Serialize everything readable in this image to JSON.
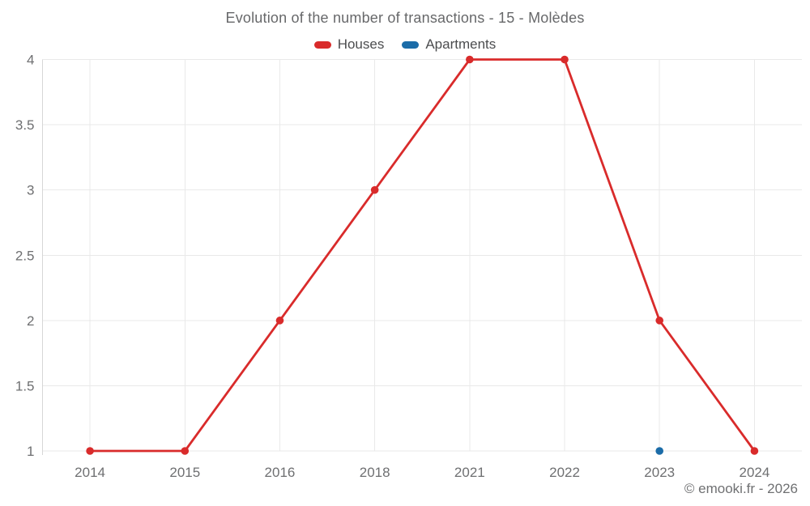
{
  "title": "Evolution of the number of transactions - 15 - Molèdes",
  "copyright": "© emooki.fr - 2026",
  "colors": {
    "houses": "#d92b2b",
    "apartments": "#1b6ca8",
    "grid": "#e9e9e9",
    "axis": "#d6d6d6",
    "tick_label": "#6e6f71",
    "title_text": "#67686a",
    "legend_text": "#4c4d4f",
    "copyright_text": "#6f7072",
    "background": "#ffffff"
  },
  "chart_data": {
    "type": "line",
    "title": "Evolution of the number of transactions - 15 - Molèdes",
    "categories": [
      "2014",
      "2015",
      "2016",
      "2018",
      "2021",
      "2022",
      "2023",
      "2024"
    ],
    "series": [
      {
        "name": "Houses",
        "color": "#d92b2b",
        "values": [
          1,
          1,
          2,
          3,
          4,
          4,
          2,
          1
        ]
      },
      {
        "name": "Apartments",
        "color": "#1b6ca8",
        "values": [
          null,
          null,
          null,
          null,
          null,
          null,
          1,
          null
        ]
      }
    ],
    "xlabel": "",
    "ylabel": "",
    "ylim": [
      1,
      4
    ],
    "yticks": [
      1,
      1.5,
      2,
      2.5,
      3,
      3.5,
      4
    ],
    "grid": true,
    "legend_position": "top"
  }
}
